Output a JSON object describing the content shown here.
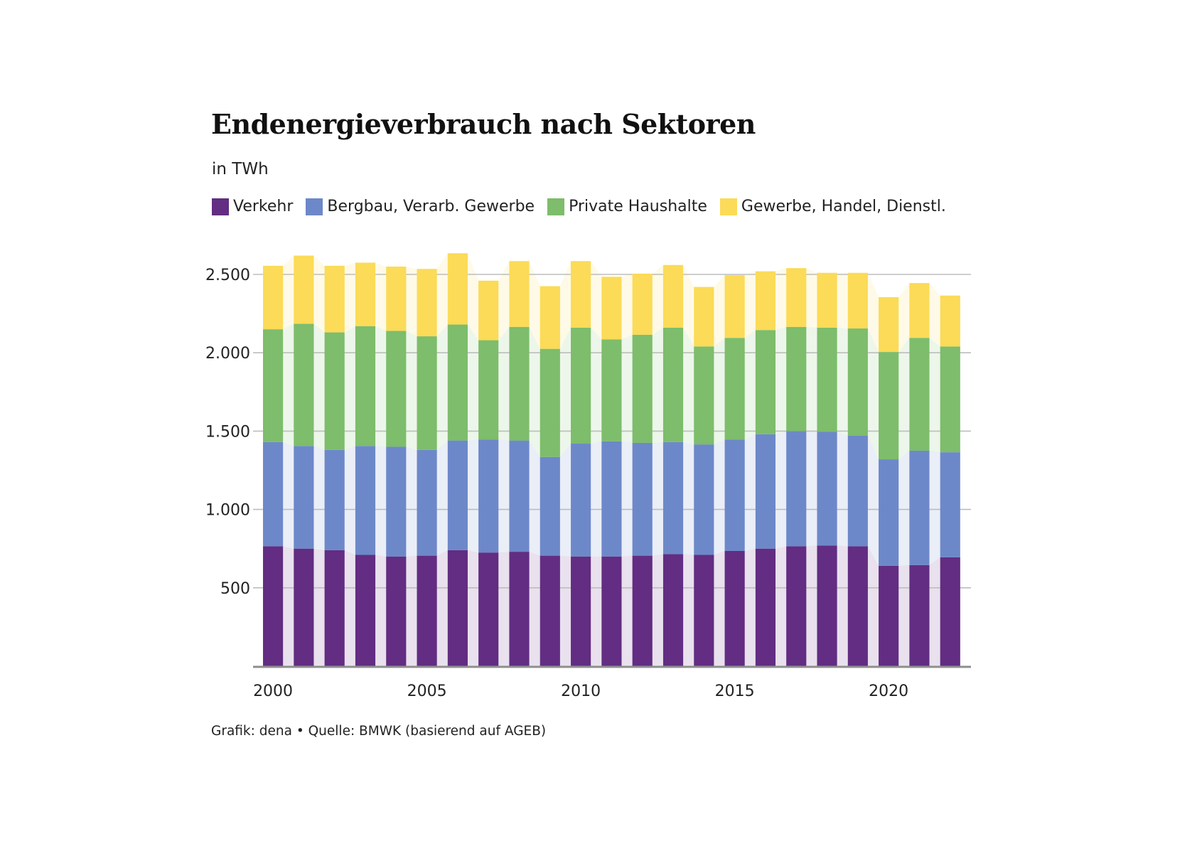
{
  "header": {
    "title": "Endenergieverbrauch nach Sektoren",
    "subtitle": "in TWh"
  },
  "legend": [
    {
      "label": "Verkehr",
      "color": "#622d82"
    },
    {
      "label": "Bergbau, Verarb. Gewerbe",
      "color": "#6d88c9"
    },
    {
      "label": "Private Haushalte",
      "color": "#7dbd6b"
    },
    {
      "label": "Gewerbe, Handel, Dienstl.",
      "color": "#fbdb57"
    }
  ],
  "footer": {
    "text": "Grafik: dena • Quelle: BMWK (basierend auf AGEB)"
  },
  "chart_data": {
    "type": "bar",
    "stacked": true,
    "title": "Endenergieverbrauch nach Sektoren",
    "subtitle": "in TWh",
    "xlabel": "",
    "ylabel": "TWh",
    "ylim": [
      0,
      2650
    ],
    "grid": true,
    "legend_position": "top-left",
    "yticks": [
      500,
      1000,
      1500,
      2000,
      2500
    ],
    "ytick_labels": [
      "500",
      "1.000",
      "1.500",
      "2.000",
      "2.500"
    ],
    "xtick_labels": [
      "2000",
      "2005",
      "2010",
      "2015",
      "2020"
    ],
    "categories": [
      "2000",
      "2001",
      "2002",
      "2003",
      "2004",
      "2005",
      "2006",
      "2007",
      "2008",
      "2009",
      "2010",
      "2011",
      "2012",
      "2013",
      "2014",
      "2015",
      "2016",
      "2017",
      "2018",
      "2019",
      "2020",
      "2021",
      "2022"
    ],
    "series": [
      {
        "name": "Verkehr",
        "color": "#622d82",
        "values": [
          765,
          750,
          740,
          710,
          700,
          705,
          740,
          725,
          730,
          705,
          700,
          700,
          705,
          715,
          710,
          735,
          750,
          765,
          770,
          765,
          640,
          645,
          695
        ]
      },
      {
        "name": "Bergbau, Verarb. Gewerbe",
        "color": "#6d88c9",
        "values": [
          665,
          655,
          640,
          695,
          700,
          675,
          700,
          720,
          710,
          630,
          720,
          735,
          720,
          715,
          705,
          710,
          730,
          735,
          725,
          705,
          680,
          730,
          670
        ]
      },
      {
        "name": "Private Haushalte",
        "color": "#7dbd6b",
        "values": [
          720,
          780,
          750,
          765,
          740,
          725,
          740,
          635,
          725,
          690,
          740,
          650,
          690,
          730,
          625,
          650,
          665,
          665,
          665,
          685,
          685,
          720,
          675
        ]
      },
      {
        "name": "Gewerbe, Handel, Dienstl.",
        "color": "#fbdb57",
        "values": [
          405,
          435,
          425,
          405,
          410,
          430,
          455,
          380,
          420,
          400,
          425,
          400,
          390,
          400,
          380,
          400,
          375,
          375,
          350,
          355,
          350,
          350,
          325
        ]
      }
    ]
  }
}
